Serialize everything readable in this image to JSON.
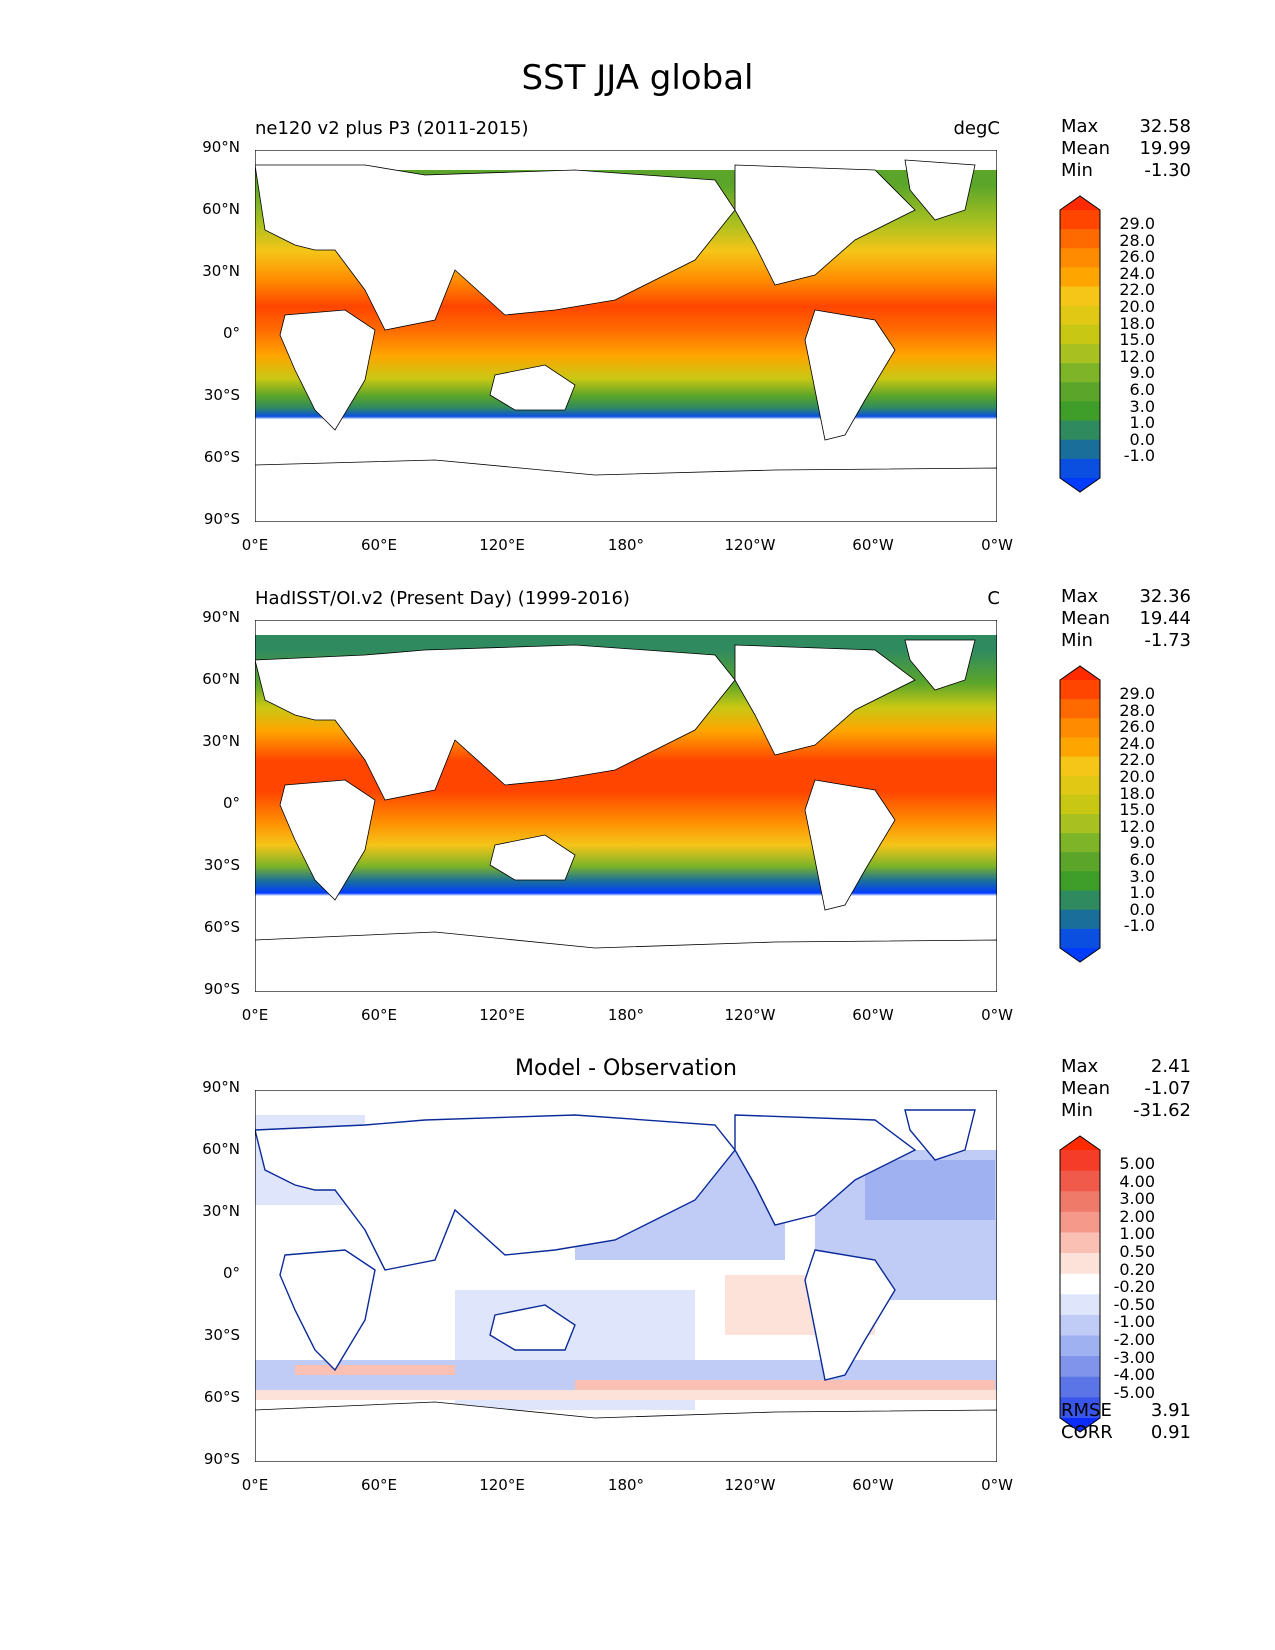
{
  "title": "SST JJA global",
  "axes": {
    "lat_ticks": [
      "90°N",
      "60°N",
      "30°N",
      "0°",
      "30°S",
      "60°S",
      "90°S"
    ],
    "lon_ticks": [
      "0°E",
      "60°E",
      "120°E",
      "180°",
      "120°W",
      "60°W",
      "0°W"
    ]
  },
  "panels": [
    {
      "title_left": "ne120 v2 plus P3 (2011-2015)",
      "title_right": "degC",
      "title_center": "",
      "stats": [
        {
          "label": "Max",
          "value": "32.58"
        },
        {
          "label": "Mean",
          "value": "19.99"
        },
        {
          "label": "Min",
          "value": "-1.30"
        }
      ],
      "colorbar_labels": [
        "29.0",
        "28.0",
        "26.0",
        "24.0",
        "22.0",
        "20.0",
        "18.0",
        "15.0",
        "12.0",
        "9.0",
        "6.0",
        "3.0",
        "1.0",
        "0.0",
        "-1.0"
      ],
      "colorbar_colors": [
        "#ff2a00",
        "#ff4500",
        "#ff6a00",
        "#ff8c00",
        "#ffa500",
        "#f5c518",
        "#e0c814",
        "#c8c814",
        "#a8c020",
        "#7db428",
        "#5aa52a",
        "#3f9e2a",
        "#2f8a60",
        "#1a6f9a",
        "#0a4fe0",
        "#003cff"
      ]
    },
    {
      "title_left": "HadISST/OI.v2 (Present Day) (1999-2016)",
      "title_right": "C",
      "title_center": "",
      "stats": [
        {
          "label": "Max",
          "value": "32.36"
        },
        {
          "label": "Mean",
          "value": "19.44"
        },
        {
          "label": "Min",
          "value": "-1.73"
        }
      ],
      "colorbar_labels": [
        "29.0",
        "28.0",
        "26.0",
        "24.0",
        "22.0",
        "20.0",
        "18.0",
        "15.0",
        "12.0",
        "9.0",
        "6.0",
        "3.0",
        "1.0",
        "0.0",
        "-1.0"
      ],
      "colorbar_colors": [
        "#ff2a00",
        "#ff4500",
        "#ff6a00",
        "#ff8c00",
        "#ffa500",
        "#f5c518",
        "#e0c814",
        "#c8c814",
        "#a8c020",
        "#7db428",
        "#5aa52a",
        "#3f9e2a",
        "#2f8a60",
        "#1a6f9a",
        "#0a4fe0",
        "#003cff"
      ]
    },
    {
      "title_left": "",
      "title_right": "",
      "title_center": "Model - Observation",
      "stats": [
        {
          "label": "Max",
          "value": "2.41"
        },
        {
          "label": "Mean",
          "value": "-1.07"
        },
        {
          "label": "Min",
          "value": "-31.62"
        }
      ],
      "colorbar_labels": [
        "5.00",
        "4.00",
        "3.00",
        "2.00",
        "1.00",
        "0.50",
        "0.20",
        "-0.20",
        "-0.50",
        "-1.00",
        "-2.00",
        "-3.00",
        "-4.00",
        "-5.00"
      ],
      "colorbar_colors": [
        "#ff2a00",
        "#f53c28",
        "#f05a4a",
        "#f07a6a",
        "#f59a8a",
        "#fac0b4",
        "#fde2da",
        "#ffffff",
        "#dfe6fb",
        "#c0ccf6",
        "#9fb1f0",
        "#7f94ea",
        "#5c75e6",
        "#3a56ea",
        "#0a2cff"
      ],
      "extra": [
        {
          "label": "RMSE",
          "value": "3.91"
        },
        {
          "label": "CORR",
          "value": "0.91"
        }
      ]
    }
  ],
  "colors": {
    "land": "#ffffff",
    "coast": "#000000",
    "sst_warm": "#ff2a00",
    "sst_cold": "#003cff"
  }
}
